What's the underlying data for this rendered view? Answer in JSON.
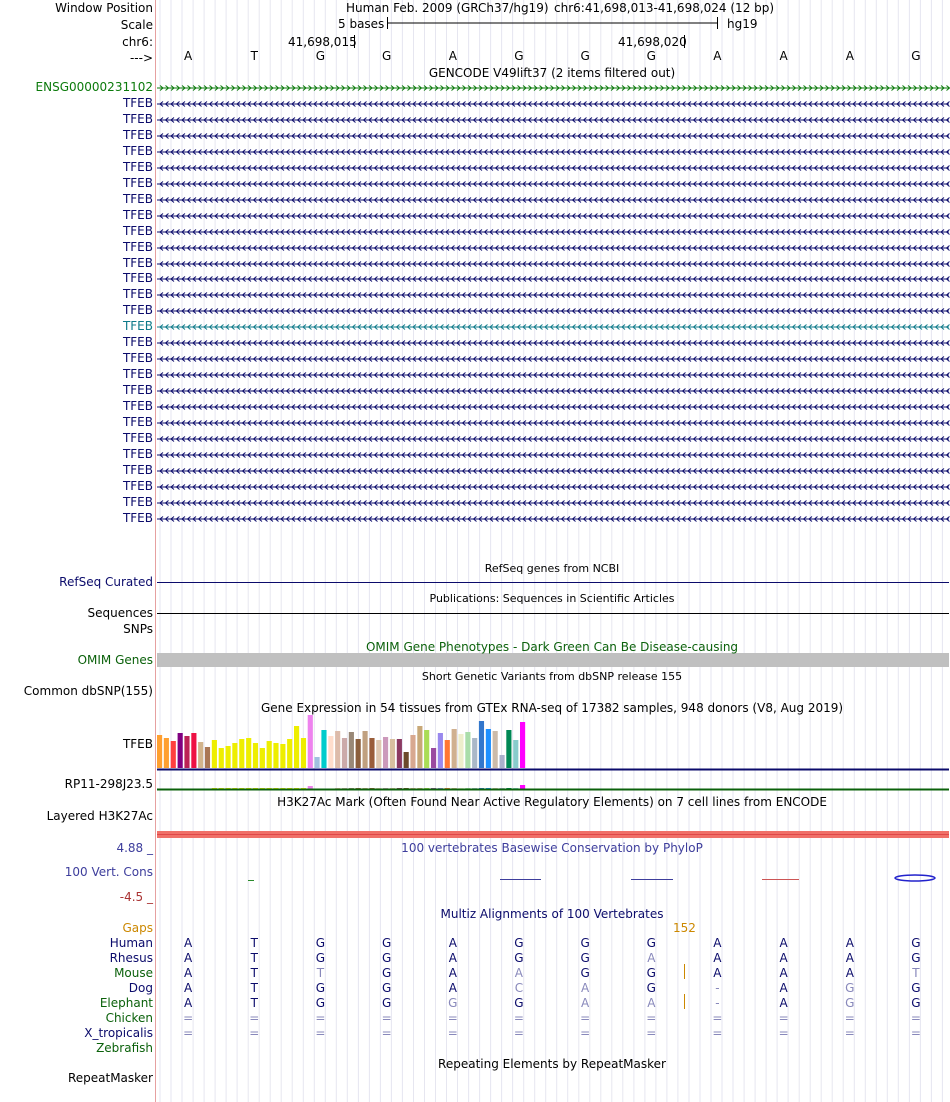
{
  "header": {
    "window_position_label": "Window Position",
    "assembly": "Human Feb. 2009 (GRCh37/hg19)",
    "position": "chr6:41,698,013-41,698,024 (12 bp)",
    "scale_label": "Scale",
    "scale_text": "5 bases",
    "scale_db": "hg19",
    "chrom_label": "chr6:",
    "coord_1": "41,698,015",
    "coord_2": "41,698,020",
    "strand_label": "--->",
    "bases": [
      "A",
      "T",
      "G",
      "G",
      "A",
      "G",
      "G",
      "G",
      "A",
      "A",
      "A",
      "G"
    ]
  },
  "gencode": {
    "title": "GENCODE V49lift37 (2 items filtered out)",
    "first_label": "ENSG00000231102",
    "transcripts": [
      "TFEB",
      "TFEB",
      "TFEB",
      "TFEB",
      "TFEB",
      "TFEB",
      "TFEB",
      "TFEB",
      "TFEB",
      "TFEB",
      "TFEB",
      "TFEB",
      "TFEB",
      "TFEB",
      "TFEB",
      "TFEB",
      "TFEB",
      "TFEB",
      "TFEB",
      "TFEB",
      "TFEB",
      "TFEB",
      "TFEB",
      "TFEB",
      "TFEB",
      "TFEB",
      "TFEB"
    ],
    "highlight_index": 14,
    "colors": {
      "ensg": "#0b7a0b",
      "tfeb": "#0b0b6b",
      "highlight": "#0f7a8a"
    }
  },
  "refseq": {
    "title": "RefSeq genes from NCBI",
    "label": "RefSeq Curated"
  },
  "publications": {
    "title": "Publications: Sequences in Scientific Articles",
    "label_1": "Sequences",
    "label_2": "SNPs"
  },
  "omim": {
    "title": "OMIM Gene Phenotypes - Dark Green Can Be Disease-causing",
    "label": "OMIM Genes"
  },
  "dbsnp": {
    "title": "Short Genetic Variants from dbSNP release 155",
    "label": "Common dbSNP(155)"
  },
  "gtex": {
    "title": "Gene Expression in 54 tissues from GTEx RNA-seq of 17382 samples, 948 donors (V8, Aug 2019)",
    "label_1": "TFEB",
    "label_2": "RP11-298J23.5",
    "tfeb_values": [
      33,
      30,
      27,
      35,
      32,
      35,
      26,
      21,
      28,
      20,
      22,
      25,
      29,
      30,
      25,
      20,
      27,
      25,
      24,
      29,
      42,
      30,
      53,
      11,
      38,
      32,
      37,
      30,
      36,
      29,
      37,
      30,
      28,
      31,
      29,
      29,
      16,
      33,
      42,
      38,
      20,
      35,
      28,
      39,
      34,
      36,
      30,
      47,
      39,
      37,
      13,
      38,
      28,
      46
    ],
    "rp11_values": [
      0,
      0,
      0,
      0,
      0,
      0,
      0,
      0,
      1,
      1,
      1,
      1,
      1,
      1,
      1,
      1,
      1,
      1,
      1,
      1,
      1,
      1,
      3,
      0,
      0,
      0,
      1,
      1,
      1,
      1,
      1,
      1,
      1,
      1,
      1,
      1,
      1,
      1,
      1,
      1,
      1,
      1,
      1,
      1,
      1,
      1,
      1,
      1,
      1,
      1,
      1,
      1,
      1,
      4
    ],
    "colors": [
      "#ff9f2f",
      "#ff9f2f",
      "#ff3f3f",
      "#800080",
      "#bb2255",
      "#ee1144",
      "#d2b48c",
      "#aa7755",
      "#eeee00",
      "#eeee00",
      "#eeee00",
      "#eeee00",
      "#eeee00",
      "#eeee00",
      "#eeee00",
      "#eeee00",
      "#eeee00",
      "#eeee00",
      "#eeee00",
      "#eeee00",
      "#eeee00",
      "#eeee00",
      "#ee82ee",
      "#a0c0e0",
      "#00cccc",
      "#ffddcc",
      "#ddbbaa",
      "#ccaaaa",
      "#998877",
      "#8b5e3c",
      "#c0a080",
      "#9a5d3a",
      "#e0c8b0",
      "#cc99bb",
      "#d8c0a0",
      "#8b3a62",
      "#6b4a2a",
      "#d8a890",
      "#c8a878",
      "#aadd55",
      "#9a4aa0",
      "#9988ee",
      "#ff7733",
      "#d0b090",
      "#eeeecc",
      "#aaddaa",
      "#aab8c8",
      "#3377cc",
      "#1e90ff",
      "#ccbbaa",
      "#aab0cc",
      "#008855",
      "#88cccc",
      "#ff00ff"
    ]
  },
  "h3k27ac": {
    "title": "H3K27Ac Mark (Often Found Near Active Regulatory Elements) on 7 cell lines from ENCODE",
    "label": "Layered H3K27Ac"
  },
  "phylop": {
    "title": "100 vertebrates Basewise Conservation by PhyloP",
    "max": "4.88 _",
    "label": "100 Vert. Cons",
    "min": "-4.5 _"
  },
  "multiz": {
    "title": "Multiz Alignments of 100 Vertebrates",
    "gaps_label": "Gaps",
    "gap_count": "152",
    "species": [
      {
        "name": "Human",
        "color": "#0b0b6b",
        "bases": [
          "A",
          "T",
          "G",
          "G",
          "A",
          "G",
          "G",
          "G",
          "A",
          "A",
          "A",
          "G"
        ],
        "faded": [
          0,
          0,
          0,
          0,
          0,
          0,
          0,
          0,
          0,
          0,
          0,
          0
        ]
      },
      {
        "name": "Rhesus",
        "color": "#0b0b6b",
        "bases": [
          "A",
          "T",
          "G",
          "G",
          "A",
          "G",
          "G",
          "A",
          "A",
          "A",
          "A",
          "G"
        ],
        "faded": [
          0,
          0,
          0,
          0,
          0,
          0,
          0,
          1,
          0,
          0,
          0,
          0
        ]
      },
      {
        "name": "Mouse",
        "color": "#0b610b",
        "bases": [
          "A",
          "T",
          "T",
          "G",
          "A",
          "A",
          "G",
          "G",
          "A",
          "A",
          "A",
          "T"
        ],
        "faded": [
          0,
          0,
          1,
          0,
          0,
          1,
          0,
          0,
          0,
          0,
          0,
          1
        ]
      },
      {
        "name": "Dog",
        "color": "#0b0b6b",
        "bases": [
          "A",
          "T",
          "G",
          "G",
          "A",
          "C",
          "A",
          "G",
          "-",
          "A",
          "G",
          "G"
        ],
        "faded": [
          0,
          0,
          0,
          0,
          0,
          1,
          1,
          0,
          1,
          0,
          1,
          0
        ]
      },
      {
        "name": "Elephant",
        "color": "#0b610b",
        "bases": [
          "A",
          "T",
          "G",
          "G",
          "G",
          "G",
          "A",
          "A",
          "-",
          "A",
          "G",
          "G"
        ],
        "faded": [
          0,
          0,
          0,
          0,
          1,
          0,
          1,
          1,
          1,
          0,
          1,
          0
        ]
      },
      {
        "name": "Chicken",
        "color": "#0b610b",
        "bases": [
          "=",
          "=",
          "=",
          "=",
          "=",
          "=",
          "=",
          "=",
          "=",
          "=",
          "=",
          "="
        ],
        "faded": [
          1,
          1,
          1,
          1,
          1,
          1,
          1,
          1,
          1,
          1,
          1,
          1
        ]
      },
      {
        "name": "X_tropicalis",
        "color": "#0b0b6b",
        "bases": [
          "=",
          "=",
          "=",
          "=",
          "=",
          "=",
          "=",
          "=",
          "=",
          "=",
          "=",
          "="
        ],
        "faded": [
          1,
          1,
          1,
          1,
          1,
          1,
          1,
          1,
          1,
          1,
          1,
          1
        ]
      },
      {
        "name": "Zebrafish",
        "color": "#0b610b",
        "bases": [
          "",
          "",
          "",
          "",
          "",
          "",
          "",
          "",
          "",
          "",
          "",
          ""
        ],
        "faded": [
          0,
          0,
          0,
          0,
          0,
          0,
          0,
          0,
          0,
          0,
          0,
          0
        ]
      }
    ]
  },
  "repeatmasker": {
    "title": "Repeating Elements by RepeatMasker",
    "label": "RepeatMasker"
  },
  "colors": {
    "navy": "#0b0b6b",
    "green": "#0b610b",
    "gap_orange": "#cc8800",
    "phylop_blue": "#3d3d9c",
    "phylop_red": "#aa3333",
    "h3k27_red": "#f07068",
    "omim_gray": "#c0c0c0",
    "divider": "#e6a0a0",
    "grid": "#e6e6f0"
  }
}
